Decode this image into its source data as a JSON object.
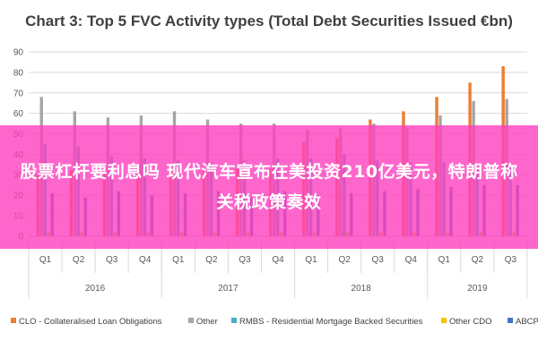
{
  "chart_data": {
    "type": "bar",
    "title": "Chart 3: Top 5 FVC Activity types (Total Debt Securities Issued €bn)",
    "ylim": [
      0,
      90
    ],
    "yticks": [
      "0",
      "10",
      "20",
      "30",
      "40",
      "50",
      "60",
      "70",
      "80",
      "90"
    ],
    "grid": true,
    "legend_position": "bottom",
    "categories": [
      "Q1",
      "Q2",
      "Q3",
      "Q4",
      "Q1",
      "Q2",
      "Q3",
      "Q4",
      "Q1",
      "Q2",
      "Q3",
      "Q4",
      "Q1",
      "Q2",
      "Q3"
    ],
    "years": [
      {
        "label": "2016",
        "span": 4
      },
      {
        "label": "2017",
        "span": 4
      },
      {
        "label": "2018",
        "span": 4
      },
      {
        "label": "2019",
        "span": 3
      }
    ],
    "series": [
      {
        "name": "CLO - Collateralised Loan Obligations",
        "color": "#ED7D31",
        "values": [
          30,
          32,
          33,
          33,
          33,
          33,
          33,
          33,
          46,
          48,
          57,
          61,
          68,
          75,
          83
        ]
      },
      {
        "name": "Other",
        "color": "#A5A5A5",
        "values": [
          68,
          61,
          58,
          59,
          61,
          57,
          55,
          55,
          52,
          53,
          55,
          53,
          59,
          66,
          67
        ]
      },
      {
        "name": "RMBS - Residential Mortgage Backed Securities",
        "color": "#4BACC6",
        "values": [
          45,
          44,
          39,
          38,
          37,
          36,
          37,
          38,
          38,
          40,
          37,
          36,
          36,
          35,
          34
        ]
      },
      {
        "name": "Other CDO",
        "color": "#FFC000",
        "values": [
          2,
          2,
          2,
          2,
          2,
          2,
          2,
          2,
          2,
          2,
          2,
          2,
          2,
          2,
          2
        ]
      },
      {
        "name": "ABCP",
        "color": "#4472C4",
        "values": [
          21,
          19,
          22,
          20,
          21,
          22,
          19,
          22,
          20,
          21,
          22,
          23,
          24,
          25,
          25
        ]
      }
    ]
  },
  "overlay": {
    "text": "股票杠杆要利息吗 现代汽车宣布在美投资210亿美元，特朗普称关税政策奏效"
  }
}
